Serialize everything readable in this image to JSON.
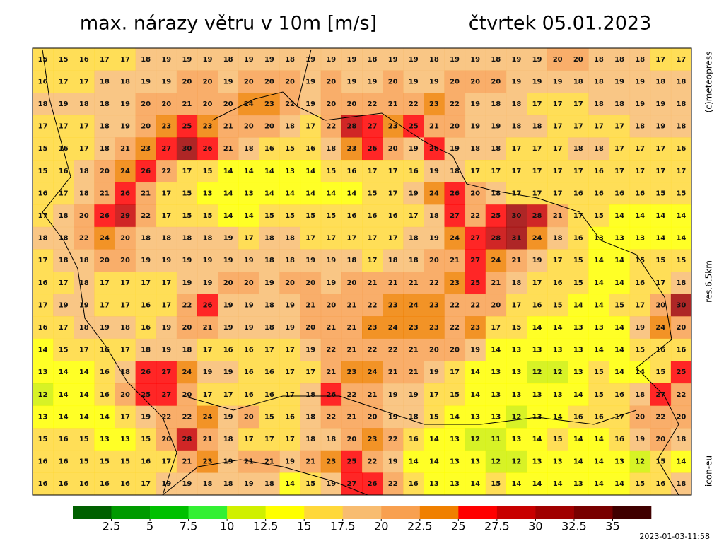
{
  "title": "max. nárazy větru v 10m [m/s]",
  "date": "čtvrtek 05.01.2023",
  "copyright": "(c)meteopress",
  "resolution": "res.6.5km",
  "model": "icon-eu",
  "timestamp": "2023-01-03-11:58",
  "colorbar": {
    "range": [
      0,
      37.5
    ],
    "ticks": [
      2.5,
      5,
      7.5,
      10,
      12.5,
      15,
      17.5,
      20,
      22.5,
      25,
      27.5,
      30,
      32.5,
      35
    ],
    "colors": [
      "#006000",
      "#009a00",
      "#00c000",
      "#33f033",
      "#d0f000",
      "#ffff00",
      "#ffd83a",
      "#f8bc70",
      "#f8a050",
      "#f08000",
      "#ff0000",
      "#c80000",
      "#a00000",
      "#780000",
      "#400000"
    ]
  },
  "map": {
    "grid": [
      [
        15,
        15,
        16,
        17,
        17,
        18,
        19,
        19,
        19,
        18,
        19,
        19,
        18,
        19,
        19,
        19,
        18,
        19,
        19,
        18,
        19,
        19,
        18,
        19,
        19,
        20,
        20,
        18,
        18,
        18,
        17,
        17
      ],
      [
        16,
        17,
        17,
        18,
        18,
        19,
        19,
        20,
        20,
        19,
        20,
        20,
        20,
        19,
        20,
        19,
        19,
        20,
        19,
        19,
        20,
        20,
        20,
        19,
        19,
        19,
        18,
        18,
        19,
        19,
        18,
        18
      ],
      [
        18,
        19,
        18,
        18,
        19,
        20,
        20,
        21,
        20,
        20,
        24,
        23,
        22,
        19,
        20,
        20,
        22,
        21,
        22,
        23,
        22,
        19,
        18,
        18,
        17,
        17,
        17,
        18,
        18,
        19,
        19,
        18
      ],
      [
        17,
        17,
        17,
        18,
        19,
        20,
        23,
        25,
        23,
        21,
        20,
        20,
        18,
        17,
        22,
        28,
        27,
        23,
        25,
        21,
        20,
        19,
        19,
        18,
        18,
        17,
        17,
        17,
        17,
        18,
        19,
        18
      ],
      [
        15,
        16,
        17,
        18,
        21,
        23,
        27,
        30,
        26,
        21,
        18,
        16,
        15,
        16,
        18,
        23,
        26,
        20,
        19,
        26,
        19,
        18,
        18,
        17,
        17,
        17,
        18,
        18,
        17,
        17,
        17,
        16
      ],
      [
        15,
        16,
        18,
        20,
        24,
        26,
        22,
        17,
        15,
        14,
        14,
        14,
        13,
        14,
        15,
        16,
        17,
        17,
        16,
        19,
        18,
        17,
        17,
        17,
        17,
        17,
        17,
        16,
        17,
        17,
        17,
        17
      ],
      [
        16,
        17,
        18,
        21,
        26,
        21,
        17,
        15,
        13,
        14,
        13,
        14,
        14,
        14,
        14,
        14,
        15,
        17,
        19,
        24,
        26,
        20,
        18,
        17,
        17,
        17,
        16,
        16,
        16,
        16,
        15,
        15
      ],
      [
        17,
        18,
        20,
        26,
        29,
        22,
        17,
        15,
        15,
        14,
        14,
        15,
        15,
        15,
        15,
        16,
        16,
        16,
        17,
        18,
        27,
        22,
        25,
        30,
        28,
        21,
        17,
        15,
        14,
        14,
        14,
        14
      ],
      [
        18,
        18,
        22,
        24,
        20,
        18,
        18,
        18,
        18,
        19,
        17,
        18,
        18,
        17,
        17,
        17,
        17,
        17,
        18,
        19,
        24,
        27,
        28,
        31,
        24,
        18,
        16,
        13,
        13,
        13,
        14,
        14
      ],
      [
        17,
        18,
        18,
        20,
        20,
        19,
        19,
        19,
        19,
        19,
        19,
        18,
        18,
        19,
        19,
        18,
        17,
        18,
        18,
        20,
        21,
        27,
        24,
        21,
        19,
        17,
        15,
        14,
        14,
        15,
        15,
        15
      ],
      [
        16,
        17,
        18,
        17,
        17,
        17,
        17,
        19,
        19,
        20,
        20,
        19,
        20,
        20,
        19,
        20,
        21,
        21,
        21,
        22,
        23,
        25,
        21,
        18,
        17,
        16,
        15,
        14,
        14,
        16,
        17,
        18
      ],
      [
        17,
        19,
        19,
        17,
        17,
        16,
        17,
        22,
        26,
        19,
        19,
        18,
        19,
        21,
        20,
        21,
        22,
        23,
        24,
        23,
        22,
        22,
        20,
        17,
        16,
        15,
        14,
        14,
        15,
        17,
        20,
        30
      ],
      [
        16,
        17,
        18,
        19,
        18,
        16,
        19,
        20,
        21,
        19,
        19,
        18,
        19,
        20,
        21,
        21,
        23,
        24,
        23,
        23,
        22,
        23,
        17,
        15,
        14,
        14,
        13,
        13,
        14,
        19,
        24,
        20
      ],
      [
        14,
        15,
        17,
        16,
        17,
        18,
        19,
        18,
        17,
        16,
        16,
        17,
        17,
        19,
        22,
        21,
        22,
        22,
        21,
        20,
        20,
        19,
        14,
        13,
        13,
        13,
        13,
        14,
        14,
        15,
        16,
        16
      ],
      [
        13,
        14,
        14,
        16,
        18,
        26,
        27,
        24,
        19,
        19,
        16,
        16,
        17,
        17,
        21,
        23,
        24,
        21,
        21,
        19,
        17,
        14,
        13,
        13,
        12,
        12,
        13,
        15,
        14,
        14,
        15,
        25
      ],
      [
        12,
        14,
        14,
        16,
        20,
        25,
        27,
        20,
        17,
        17,
        16,
        16,
        17,
        18,
        26,
        22,
        21,
        19,
        19,
        17,
        15,
        14,
        13,
        13,
        13,
        13,
        14,
        15,
        16,
        18,
        27,
        22
      ],
      [
        13,
        14,
        14,
        14,
        17,
        19,
        22,
        22,
        24,
        19,
        20,
        15,
        16,
        18,
        22,
        21,
        20,
        19,
        18,
        15,
        14,
        13,
        13,
        12,
        13,
        14,
        16,
        16,
        17,
        20,
        22,
        20
      ],
      [
        15,
        16,
        15,
        13,
        13,
        15,
        20,
        28,
        21,
        18,
        17,
        17,
        17,
        18,
        18,
        20,
        23,
        22,
        16,
        14,
        13,
        12,
        11,
        13,
        14,
        15,
        14,
        14,
        16,
        19,
        20,
        18
      ],
      [
        16,
        16,
        15,
        15,
        15,
        16,
        17,
        21,
        23,
        19,
        21,
        21,
        19,
        21,
        23,
        25,
        22,
        19,
        14,
        14,
        13,
        13,
        12,
        12,
        13,
        13,
        14,
        14,
        13,
        12,
        15,
        14
      ],
      [
        16,
        16,
        16,
        16,
        16,
        17,
        19,
        19,
        18,
        18,
        19,
        18,
        14,
        15,
        19,
        27,
        26,
        22,
        16,
        13,
        13,
        14,
        15,
        14,
        14,
        14,
        13,
        14,
        14,
        15,
        16,
        18
      ]
    ]
  }
}
